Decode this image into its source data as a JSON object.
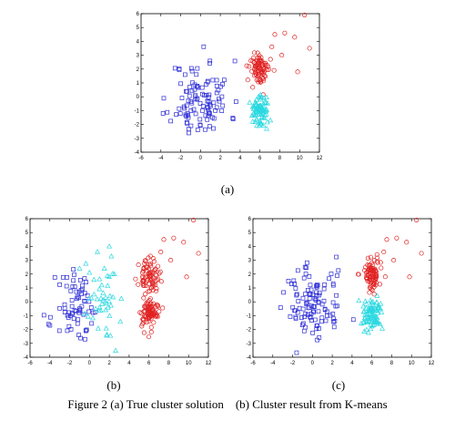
{
  "caption": "Figure 2 (a) True cluster solution    (b) Cluster result from K-means",
  "colors": {
    "blue": "#2b2bd6",
    "red": "#e02020",
    "cyan": "#2ad8e0",
    "axis": "#000000"
  },
  "chart_data": [
    {
      "type": "scatter",
      "panel_label": "(a)",
      "xlim": [
        -6,
        12
      ],
      "ylim": [
        -4,
        6
      ],
      "xticks": [
        "-6",
        "-4",
        "-2",
        "0",
        "2",
        "4",
        "6",
        "8",
        "10",
        "12"
      ],
      "yticks": [
        "-4",
        "-3",
        "-2",
        "-1",
        "0",
        "1",
        "2",
        "3",
        "4",
        "5",
        "6"
      ],
      "grid": false,
      "series": [
        {
          "color": "blue",
          "marker": "square",
          "clusters": [
            {
              "cx": 0,
              "cy": -0.2,
              "sx": 1.5,
              "sy": 1.4,
              "n": 110,
              "seed": 11
            }
          ]
        },
        {
          "color": "red",
          "marker": "circle",
          "clusters": [
            {
              "cx": 6,
              "cy": 2,
              "sx": 0.5,
              "sy": 0.6,
              "n": 85,
              "seed": 12
            }
          ],
          "extra_points": [
            [
              10.5,
              5.9
            ],
            [
              8.5,
              4.6
            ],
            [
              9.5,
              4.3
            ],
            [
              11,
              3.5
            ],
            [
              7.5,
              4.5
            ],
            [
              9.8,
              1.8
            ],
            [
              7.2,
              3.6
            ],
            [
              8.2,
              3.0
            ]
          ]
        },
        {
          "color": "cyan",
          "marker": "triangle",
          "clusters": [
            {
              "cx": 6,
              "cy": -1.0,
              "sx": 0.45,
              "sy": 0.55,
              "n": 90,
              "seed": 13
            }
          ]
        }
      ]
    },
    {
      "type": "scatter",
      "panel_label": "(b)",
      "xlim": [
        -6,
        12
      ],
      "ylim": [
        -4,
        6
      ],
      "xticks": [
        "-6",
        "-4",
        "-2",
        "0",
        "2",
        "4",
        "6",
        "8",
        "10",
        "12"
      ],
      "yticks": [
        "-4",
        "-3",
        "-2",
        "-1",
        "0",
        "1",
        "2",
        "3",
        "4",
        "5",
        "6"
      ],
      "grid": false,
      "series": [
        {
          "color": "blue",
          "marker": "square",
          "clusters": [
            {
              "cx": -1.2,
              "cy": -0.5,
              "sx": 1.1,
              "sy": 1.3,
              "n": 70,
              "seed": 21
            }
          ]
        },
        {
          "color": "cyan",
          "marker": "triangle",
          "clusters": [
            {
              "cx": 1.2,
              "cy": 0.0,
              "sx": 0.9,
              "sy": 1.3,
              "n": 45,
              "seed": 22
            }
          ],
          "extra_points": [
            [
              2.0,
              4.0
            ],
            [
              0.8,
              3.6
            ],
            [
              1.5,
              2.4
            ],
            [
              -1.0,
              2.4
            ]
          ]
        },
        {
          "color": "red",
          "marker": "circle",
          "clusters": [
            {
              "cx": 6,
              "cy": 1.8,
              "sx": 0.5,
              "sy": 0.6,
              "n": 80,
              "seed": 23
            },
            {
              "cx": 6,
              "cy": -0.9,
              "sx": 0.45,
              "sy": 0.55,
              "n": 85,
              "seed": 24
            }
          ],
          "extra_points": [
            [
              10.5,
              5.9
            ],
            [
              8.5,
              4.6
            ],
            [
              9.5,
              4.3
            ],
            [
              11,
              3.5
            ],
            [
              7.5,
              4.5
            ],
            [
              9.8,
              1.8
            ],
            [
              7.2,
              3.6
            ],
            [
              8.2,
              3.0
            ]
          ]
        }
      ]
    },
    {
      "type": "scatter",
      "panel_label": "(c)",
      "xlim": [
        -6,
        12
      ],
      "ylim": [
        -4,
        6
      ],
      "xticks": [
        "-6",
        "-4",
        "-2",
        "0",
        "2",
        "4",
        "6",
        "8",
        "10",
        "12"
      ],
      "yticks": [
        "-4",
        "-3",
        "-2",
        "-1",
        "0",
        "1",
        "2",
        "3",
        "4",
        "5",
        "6"
      ],
      "grid": false,
      "series": [
        {
          "color": "blue",
          "marker": "square",
          "clusters": [
            {
              "cx": 0,
              "cy": -0.2,
              "sx": 1.5,
              "sy": 1.4,
              "n": 110,
              "seed": 31
            }
          ]
        },
        {
          "color": "red",
          "marker": "circle",
          "clusters": [
            {
              "cx": 6,
              "cy": 2,
              "sx": 0.5,
              "sy": 0.6,
              "n": 85,
              "seed": 32
            }
          ],
          "extra_points": [
            [
              10.5,
              5.9
            ],
            [
              8.5,
              4.6
            ],
            [
              9.5,
              4.3
            ],
            [
              11,
              3.5
            ],
            [
              7.5,
              4.5
            ],
            [
              9.8,
              1.8
            ],
            [
              7.2,
              3.6
            ],
            [
              8.2,
              3.0
            ]
          ]
        },
        {
          "color": "cyan",
          "marker": "triangle",
          "clusters": [
            {
              "cx": 6,
              "cy": -1.0,
              "sx": 0.45,
              "sy": 0.55,
              "n": 90,
              "seed": 33
            }
          ]
        }
      ]
    }
  ]
}
